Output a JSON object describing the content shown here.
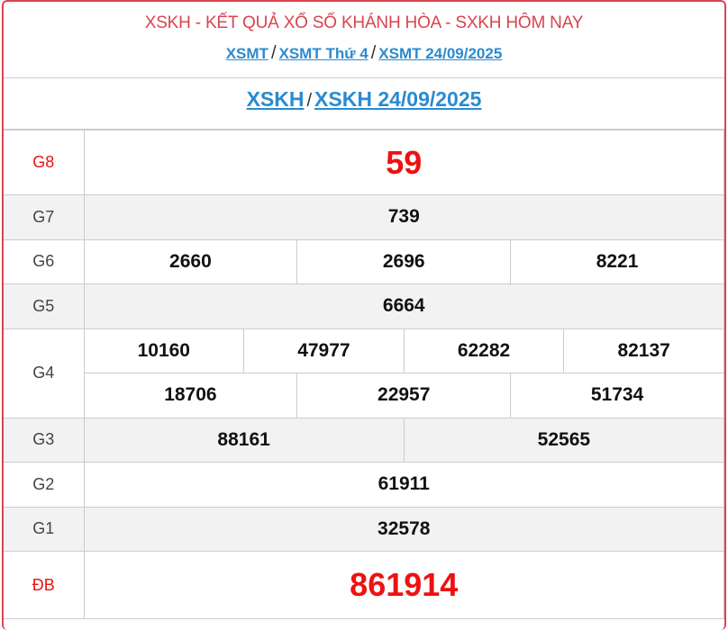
{
  "header": {
    "title": "XSKH - KẾT QUẢ XỔ SỐ KHÁNH HÒA - SXKH HÔM NAY",
    "links": [
      "XSMT",
      "XSMT Thứ 4",
      "XSMT 24/09/2025"
    ],
    "separator": "/"
  },
  "subheader": {
    "links": [
      "XSKH",
      "XSKH 24/09/2025"
    ]
  },
  "results": {
    "g8": {
      "label": "G8",
      "values": [
        "59"
      ]
    },
    "g7": {
      "label": "G7",
      "values": [
        "739"
      ]
    },
    "g6": {
      "label": "G6",
      "values": [
        "2660",
        "2696",
        "8221"
      ]
    },
    "g5": {
      "label": "G5",
      "values": [
        "6664"
      ]
    },
    "g4": {
      "label": "G4",
      "values": [
        "10160",
        "47977",
        "62282",
        "82137",
        "18706",
        "22957",
        "51734"
      ]
    },
    "g3": {
      "label": "G3",
      "values": [
        "88161",
        "52565"
      ]
    },
    "g2": {
      "label": "G2",
      "values": [
        "61911"
      ]
    },
    "g1": {
      "label": "G1",
      "values": [
        "32578"
      ]
    },
    "db": {
      "label": "ĐB",
      "values": [
        "861914"
      ]
    }
  },
  "colors": {
    "accent": "#d9434f",
    "link": "#2a8bd0",
    "prize": "#ee1111"
  }
}
